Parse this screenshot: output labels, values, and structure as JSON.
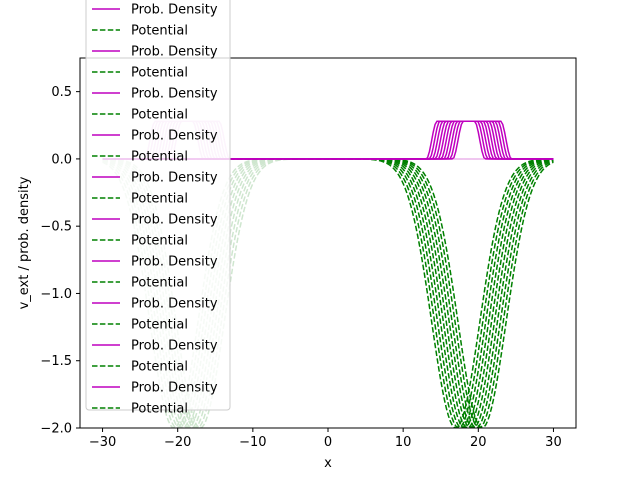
{
  "chart_data": {
    "type": "line",
    "xlabel": "x",
    "ylabel": "v_ext / prob. density",
    "xlim": [
      -33.0,
      33.0
    ],
    "ylim": [
      -2.0,
      0.75
    ],
    "x_ticks": [
      "−30",
      "−20",
      "−10",
      "0",
      "10",
      "20",
      "30"
    ],
    "x_tick_values": [
      -30,
      -20,
      -10,
      0,
      10,
      20,
      30
    ],
    "y_ticks": [
      "−2.0",
      "−1.5",
      "−1.0",
      "−0.5",
      "0.0",
      "0.5"
    ],
    "y_tick_values": [
      -2.0,
      -1.5,
      -1.0,
      -0.5,
      0.0,
      0.5
    ],
    "grid": false,
    "legend_position": "upper left",
    "legend_entries": [
      "Prob. Density",
      "Potential",
      "Prob. Density",
      "Potential",
      "Prob. Density",
      "Potential",
      "Prob. Density",
      "Potential",
      "Prob. Density",
      "Potential",
      "Prob. Density",
      "Potential",
      "Prob. Density",
      "Potential",
      "Prob. Density",
      "Potential",
      "Prob. Density",
      "Potential",
      "Prob. Density",
      "Potential"
    ],
    "colors": {
      "density": "#bf00bf",
      "potential": "#008000",
      "faded_density": "#f0c6f0",
      "faded_potential": "#cfe6cf"
    },
    "series": [
      {
        "name": "Prob. Density",
        "style": "solid",
        "description_of_shape": "flat-topped bumps repeated across frames",
        "frames_faded": {
          "center_range": [
            -20.5,
            -17.0
          ],
          "height": 0.28,
          "half_width_flat": 2.5,
          "edge": 1.4
        },
        "frames_full": {
          "center_range": [
            17.0,
            20.5
          ],
          "height": 0.28,
          "half_width_flat": 2.5,
          "edge": 1.4
        }
      },
      {
        "name": "Potential",
        "style": "dashed",
        "description_of_shape": "inverted gaussian wells repeated across frames",
        "frames_faded": {
          "center_range": [
            -20.5,
            -17.0
          ],
          "depth": -2.0,
          "sigma": 3.2
        },
        "frames_full": {
          "center_range": [
            17.0,
            20.5
          ],
          "depth": -2.0,
          "sigma": 3.2
        }
      }
    ],
    "x_domain": [
      -30,
      30
    ]
  }
}
